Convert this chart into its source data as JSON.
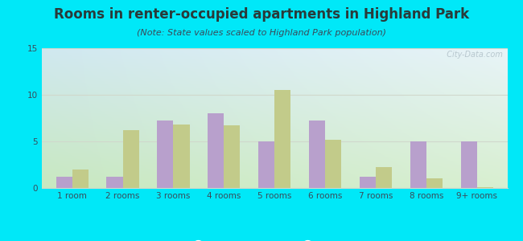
{
  "title": "Rooms in renter-occupied apartments in Highland Park",
  "subtitle": "(Note: State values scaled to Highland Park population)",
  "categories": [
    "1 room",
    "2 rooms",
    "3 rooms",
    "4 rooms",
    "5 rooms",
    "6 rooms",
    "7 rooms",
    "8 rooms",
    "9+ rooms"
  ],
  "highland_park": [
    1.2,
    1.2,
    7.2,
    8.0,
    5.0,
    7.2,
    1.2,
    5.0,
    5.0
  ],
  "midland": [
    2.0,
    6.2,
    6.8,
    6.7,
    10.5,
    5.2,
    2.2,
    1.0,
    0.05
  ],
  "hp_color": "#b8a0cc",
  "midland_color": "#c2cb8a",
  "bg_outer": "#00e8f8",
  "bg_chart_top_left": "#d0e8f0",
  "bg_chart_top_right": "#e8f4f8",
  "bg_chart_bottom_left": "#c8e8c0",
  "bg_chart_bottom_right": "#d8efd0",
  "grid_color": "#d0d8cc",
  "title_color": "#2a3a3a",
  "subtitle_color": "#3a4a5a",
  "tick_color": "#3a4a5a",
  "watermark_color": "#b0c0c8",
  "ylim": [
    0,
    15
  ],
  "yticks": [
    0,
    5,
    10,
    15
  ],
  "bar_width": 0.32,
  "title_fontsize": 12,
  "subtitle_fontsize": 8,
  "tick_fontsize": 7.5,
  "legend_fontsize": 9,
  "watermark": "  City-Data.com"
}
